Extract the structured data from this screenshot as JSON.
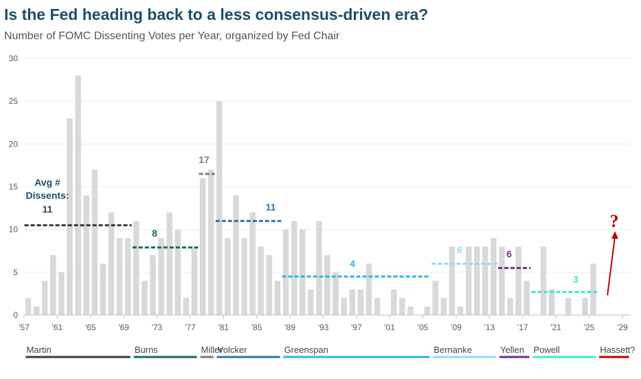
{
  "title": "Is the Fed heading back to a less consensus-driven era?",
  "subtitle": "Number of FOMC Dissenting Votes per Year, organized by Fed Chair",
  "chart_data": {
    "type": "bar",
    "title": "Is the Fed heading back to a less consensus-driven era?",
    "subtitle": "Number of FOMC Dissenting Votes per Year, organized by Fed Chair",
    "xlabel": "",
    "ylabel": "",
    "ylim": [
      0,
      30
    ],
    "yticks": [
      0,
      5,
      10,
      15,
      20,
      25,
      30
    ],
    "xlim": [
      1956.5,
      2029.5
    ],
    "xtick_years": [
      1957,
      1961,
      1965,
      1969,
      1973,
      1977,
      1981,
      1985,
      1989,
      1993,
      1997,
      2001,
      2005,
      2009,
      2013,
      2017,
      2021,
      2025,
      2029
    ],
    "xtick_labels": [
      "'57",
      "'61",
      "'65",
      "'69",
      "'73",
      "'77",
      "'81",
      "'85",
      "'89",
      "'93",
      "'97",
      "'01",
      "'05",
      "'09",
      "'13",
      "'17",
      "'21",
      "'25",
      "'29"
    ],
    "bar_color": "#d9d9d9",
    "years": [
      1957,
      1958,
      1959,
      1960,
      1961,
      1962,
      1963,
      1964,
      1965,
      1966,
      1967,
      1968,
      1969,
      1970,
      1971,
      1972,
      1973,
      1974,
      1975,
      1976,
      1977,
      1978,
      1979,
      1980,
      1981,
      1982,
      1983,
      1984,
      1985,
      1986,
      1987,
      1988,
      1989,
      1990,
      1991,
      1992,
      1993,
      1994,
      1995,
      1996,
      1997,
      1998,
      1999,
      2000,
      2001,
      2002,
      2003,
      2004,
      2005,
      2006,
      2007,
      2008,
      2009,
      2010,
      2011,
      2012,
      2013,
      2014,
      2015,
      2016,
      2017,
      2018,
      2019,
      2020,
      2021,
      2022,
      2023,
      2024,
      2025
    ],
    "values": [
      2,
      1,
      4,
      7,
      5,
      23,
      28,
      14,
      17,
      6,
      12,
      9,
      9,
      11,
      4,
      7,
      9,
      12,
      10,
      2,
      8,
      16,
      17,
      25,
      9,
      14,
      9,
      12,
      8,
      7,
      4,
      10,
      11,
      10,
      3,
      11,
      7,
      5,
      2,
      3,
      3,
      6,
      2,
      0,
      3,
      2,
      1,
      0,
      1,
      4,
      2,
      8,
      1,
      8,
      8,
      8,
      9,
      8,
      2,
      8,
      4,
      0,
      8,
      3,
      0,
      2,
      0,
      2,
      6
    ],
    "chairs": [
      {
        "name": "Martin",
        "start": 1957,
        "end": 1969,
        "avg": 10.5,
        "avg_label": "11",
        "color": "#3b3b3b"
      },
      {
        "name": "Burns",
        "start": 1970,
        "end": 1977,
        "avg": 7.9,
        "avg_label": "8",
        "color": "#0f6e5c"
      },
      {
        "name": "Miller",
        "start": 1978,
        "end": 1979,
        "avg": 16.5,
        "avg_label": "17",
        "color": "#7a7a7a"
      },
      {
        "name": "Volcker",
        "start": 1980,
        "end": 1987,
        "avg": 11,
        "avg_label": "11",
        "color": "#2a74a6"
      },
      {
        "name": "Greenspan",
        "start": 1988,
        "end": 2005,
        "avg": 4.5,
        "avg_label": "4",
        "color": "#28b7e0"
      },
      {
        "name": "Bernanke",
        "start": 2006,
        "end": 2013,
        "avg": 6,
        "avg_label": "6",
        "color": "#8fdcf3"
      },
      {
        "name": "Yellen",
        "start": 2014,
        "end": 2017,
        "avg": 5.5,
        "avg_label": "6",
        "color": "#6a2d94"
      },
      {
        "name": "Powell",
        "start": 2018,
        "end": 2025,
        "avg": 2.7,
        "avg_label": "3",
        "color": "#3ae9c7"
      },
      {
        "name": "Hassett?",
        "start": 2026,
        "end": 2029,
        "avg": null,
        "avg_label": "",
        "color": "#c00000"
      }
    ],
    "avg_heading": [
      "Avg #",
      "Dissents:"
    ],
    "annotation": {
      "text": "?",
      "color": "#c00000",
      "arrow_from": [
        2026.7,
        2.3
      ],
      "arrow_to": [
        2027.6,
        9.8
      ]
    }
  }
}
